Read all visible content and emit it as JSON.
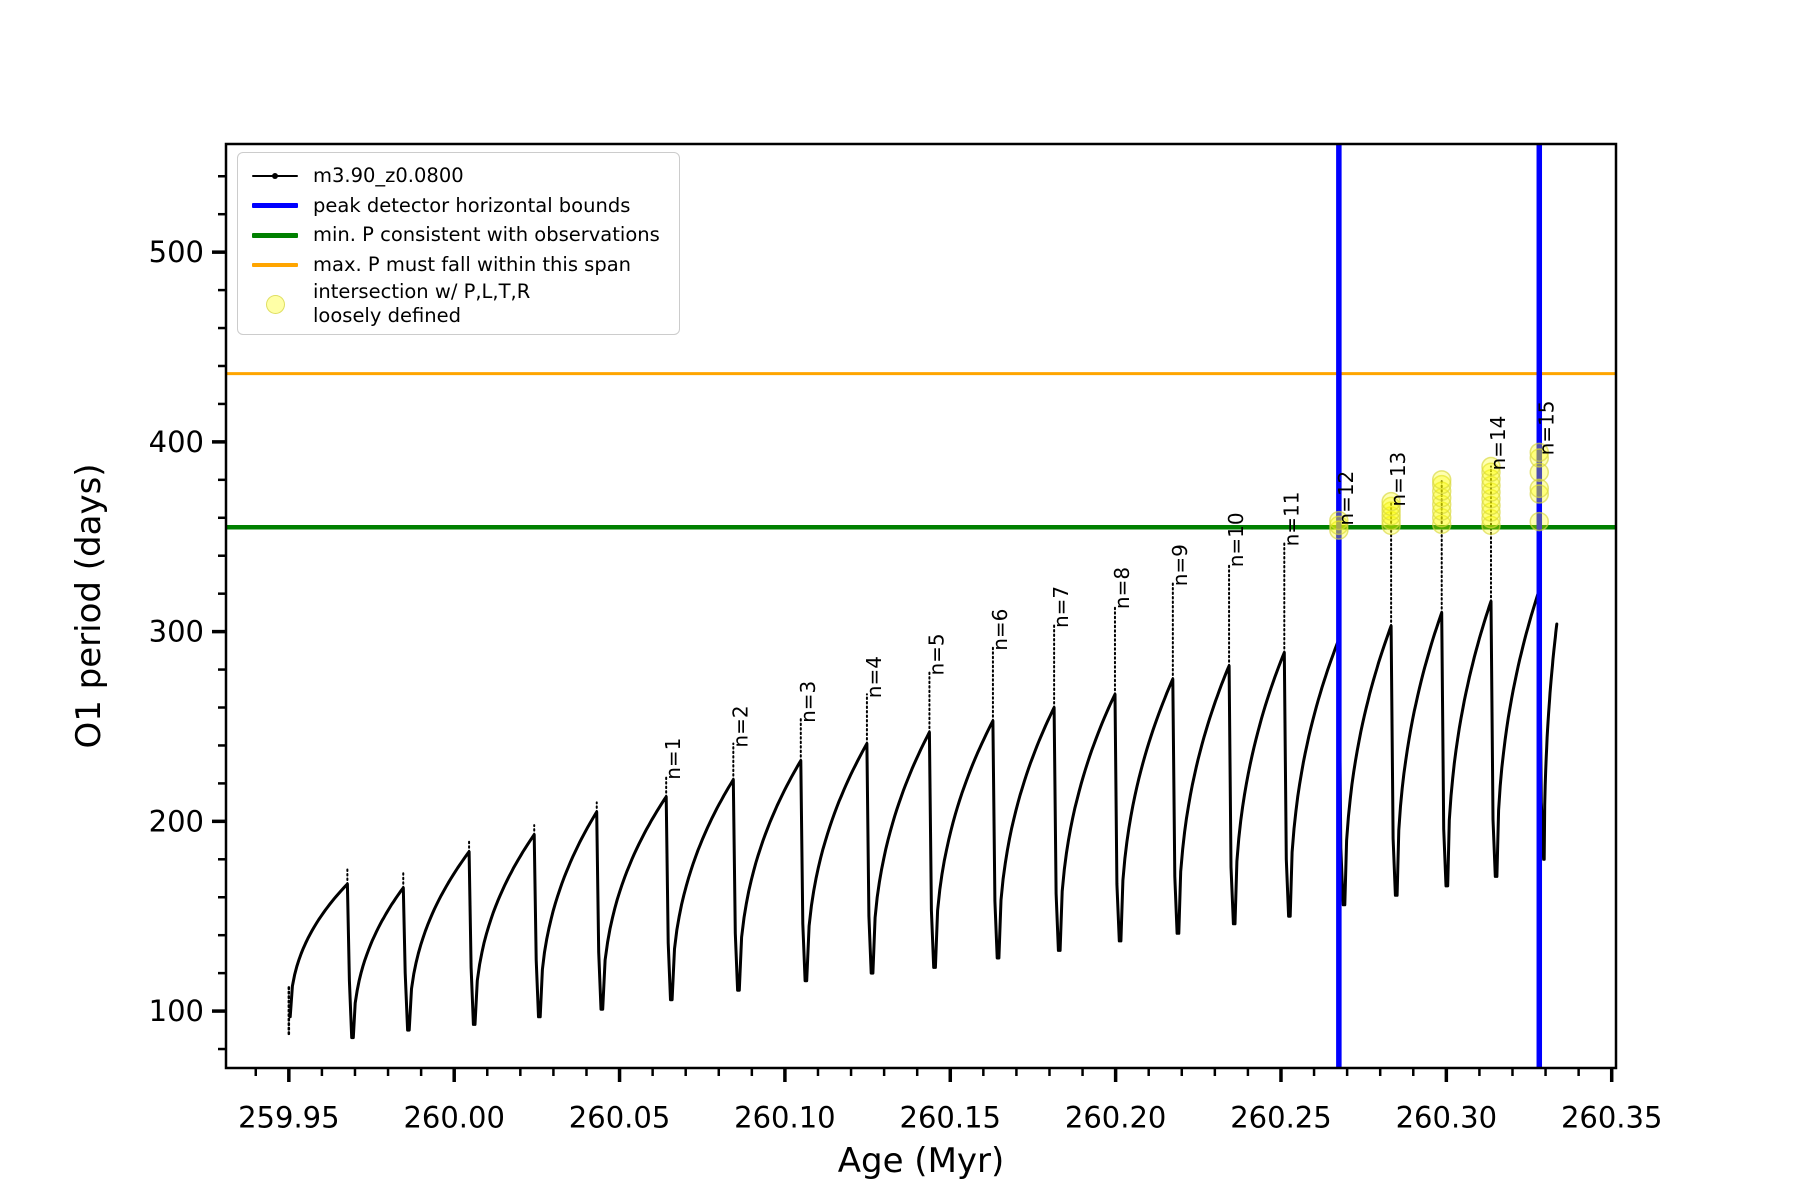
{
  "figure": {
    "background": "#ffffff",
    "xlabel": "Age (Myr)",
    "ylabel": "O1 period (days)"
  },
  "legend": {
    "items": [
      {
        "label": "m3.90_z0.0800",
        "marker": "black-line-with-dot",
        "color": "#000000"
      },
      {
        "label": "peak detector horizontal bounds",
        "marker": "thick-line",
        "color": "#0000ff"
      },
      {
        "label": "min. P consistent with observations",
        "marker": "thick-line",
        "color": "#008000"
      },
      {
        "label": "max. P must fall within this span",
        "marker": "line",
        "color": "#ffa500"
      },
      {
        "label": "intersection w/ P,L,T,R\nloosely defined",
        "marker": "pale-yellow-dot",
        "color": "#ffff66"
      }
    ]
  },
  "chart_data": {
    "type": "line",
    "title": "",
    "xlabel": "Age (Myr)",
    "ylabel": "O1 period (days)",
    "series_label": "m3.90_z0.0800",
    "xlim": [
      259.931,
      260.3513
    ],
    "ylim": [
      70,
      557
    ],
    "x_ticks": [
      {
        "v": 259.95,
        "label": "259.95"
      },
      {
        "v": 260.0,
        "label": "260.00"
      },
      {
        "v": 260.05,
        "label": "260.05"
      },
      {
        "v": 260.1,
        "label": "260.10"
      },
      {
        "v": 260.15,
        "label": "260.15"
      },
      {
        "v": 260.2,
        "label": "260.20"
      },
      {
        "v": 260.25,
        "label": "260.25"
      },
      {
        "v": 260.3,
        "label": "260.30"
      },
      {
        "v": 260.35,
        "label": "260.35"
      }
    ],
    "x_minor_step": 0.01,
    "y_ticks": [
      {
        "v": 100,
        "label": "100"
      },
      {
        "v": 200,
        "label": "200"
      },
      {
        "v": 300,
        "label": "300"
      },
      {
        "v": 400,
        "label": "400"
      },
      {
        "v": 500,
        "label": "500"
      }
    ],
    "y_minor_step": 20,
    "hlines": {
      "min_P_consistent": {
        "value": 355,
        "color": "#008000",
        "width": 4.5
      },
      "max_P_span": {
        "value": 436,
        "color": "#ffa500",
        "width": 3
      }
    },
    "vlines": {
      "peak_detector_bounds": {
        "values": [
          260.2675,
          260.3281
        ],
        "color": "#0000ff",
        "width": 5.5
      }
    },
    "start_transient": {
      "age": 259.95,
      "low": 88,
      "high": 114,
      "rise_from": 97
    },
    "cycles": [
      {
        "end_age": 259.9677,
        "plateau": 167,
        "spike": 176,
        "min_after": 86,
        "label": null
      },
      {
        "end_age": 259.9846,
        "plateau": 165,
        "spike": 173,
        "min_after": 90,
        "label": null
      },
      {
        "end_age": 260.0045,
        "plateau": 184,
        "spike": 190,
        "min_after": 93,
        "label": null
      },
      {
        "end_age": 260.0242,
        "plateau": 193,
        "spike": 198,
        "min_after": 97,
        "label": null
      },
      {
        "end_age": 260.0431,
        "plateau": 205,
        "spike": 210,
        "min_after": 101,
        "label": null
      },
      {
        "end_age": 260.0641,
        "plateau": 213,
        "spike": 224,
        "min_after": 106,
        "label": "n=1"
      },
      {
        "end_age": 260.0844,
        "plateau": 222,
        "spike": 241,
        "min_after": 111,
        "label": "n=2"
      },
      {
        "end_age": 260.1048,
        "plateau": 232,
        "spike": 254,
        "min_after": 116,
        "label": "n=3"
      },
      {
        "end_age": 260.1248,
        "plateau": 241,
        "spike": 267,
        "min_after": 120,
        "label": "n=4"
      },
      {
        "end_age": 260.1437,
        "plateau": 247,
        "spike": 279,
        "min_after": 123,
        "label": "n=5"
      },
      {
        "end_age": 260.1629,
        "plateau": 253,
        "spike": 292,
        "min_after": 128,
        "label": "n=6"
      },
      {
        "end_age": 260.1814,
        "plateau": 260,
        "spike": 304,
        "min_after": 132,
        "label": "n=7"
      },
      {
        "end_age": 260.1998,
        "plateau": 267,
        "spike": 314,
        "min_after": 137,
        "label": "n=8"
      },
      {
        "end_age": 260.2173,
        "plateau": 275,
        "spike": 326,
        "min_after": 141,
        "label": "n=9"
      },
      {
        "end_age": 260.2343,
        "plateau": 282,
        "spike": 336,
        "min_after": 146,
        "label": "n=10"
      },
      {
        "end_age": 260.251,
        "plateau": 289,
        "spike": 347,
        "min_after": 150,
        "label": "n=11"
      },
      {
        "end_age": 260.2675,
        "plateau": 296,
        "spike": 358,
        "min_after": 156,
        "label": "n=12"
      },
      {
        "end_age": 260.2833,
        "plateau": 303,
        "spike": 368,
        "min_after": 161,
        "label": "n=13"
      },
      {
        "end_age": 260.2986,
        "plateau": 310,
        "spike": 380,
        "min_after": 166,
        "label": null
      },
      {
        "end_age": 260.3135,
        "plateau": 316,
        "spike": 387,
        "min_after": 171,
        "label": "n=14"
      },
      {
        "end_age": 260.3281,
        "plateau": 322,
        "spike": 395,
        "min_after": 180,
        "label": "n=15"
      }
    ],
    "final_segment": {
      "start_age": 260.3296,
      "start_value": 180,
      "end_age": 260.3334,
      "end_value": 304
    },
    "intersections": [
      {
        "age": 260.2675,
        "values": [
          353.5,
          356,
          358.5
        ]
      },
      {
        "age": 260.2833,
        "values": [
          356,
          358.5,
          361,
          363.5,
          366,
          368.5
        ]
      },
      {
        "age": 260.2986,
        "values": [
          356.5,
          360,
          363.5,
          367,
          370.5,
          374,
          377.5,
          380
        ]
      },
      {
        "age": 260.3135,
        "values": [
          356,
          359.5,
          363,
          366.5,
          370,
          373.5,
          377,
          380.5,
          384,
          387
        ]
      },
      {
        "age": 260.3281,
        "values": [
          358,
          372.5,
          375.5,
          384,
          391.5,
          394.5
        ]
      }
    ]
  }
}
